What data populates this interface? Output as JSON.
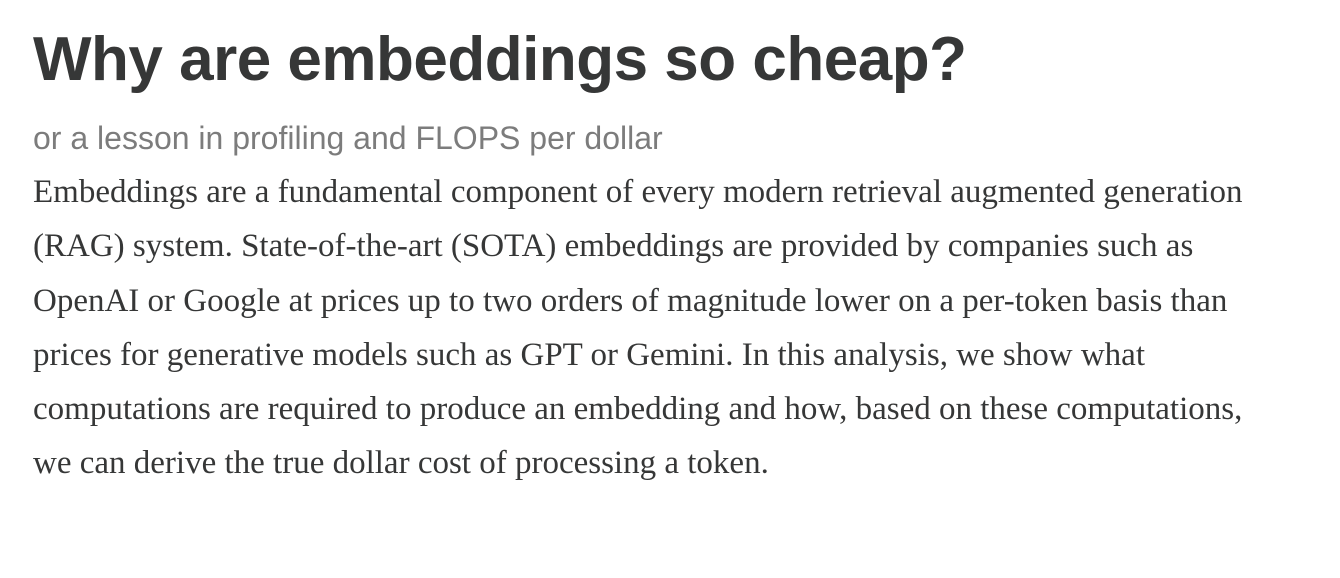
{
  "article": {
    "title": "Why are embeddings so cheap?",
    "subtitle": "or a lesson in profiling and FLOPS per dollar",
    "body": "Embeddings are a fundamental component of every modern retrieval augmented generation (RAG) system. State-of-the-art (SOTA) embeddings are provided by companies such as OpenAI or Google at prices up to two orders of magnitude lower on a per-token basis than prices for generative models such as GPT or Gemini. In this analysis, we show what computations are required to produce an embedding and how, based on these computations, we can derive the true dollar cost of processing a token."
  }
}
